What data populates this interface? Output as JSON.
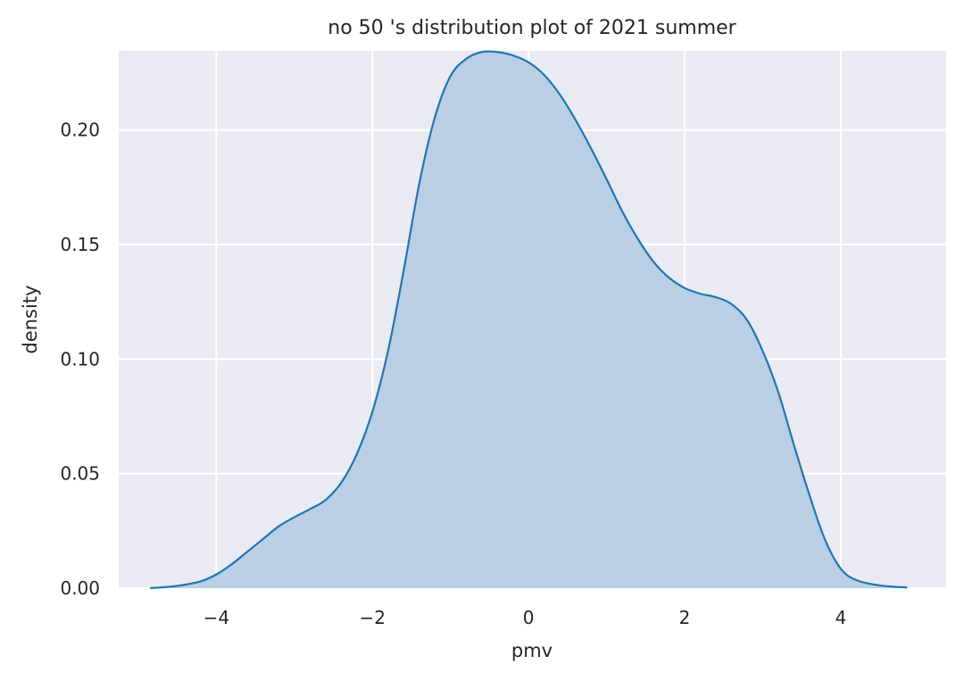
{
  "chart_data": {
    "type": "area",
    "title": "no 50 's distribution plot of 2021 summer",
    "xlabel": "pmv",
    "ylabel": "density",
    "xlim": [
      -5.25,
      5.35
    ],
    "ylim": [
      0,
      0.2345
    ],
    "xticks": [
      -4,
      -2,
      0,
      2,
      4
    ],
    "xtick_labels": [
      "−4",
      "−2",
      "0",
      "2",
      "4"
    ],
    "yticks": [
      0.0,
      0.05,
      0.1,
      0.15,
      0.2
    ],
    "ytick_labels": [
      "0.00",
      "0.05",
      "0.10",
      "0.15",
      "0.20"
    ],
    "grid": true,
    "series": [
      {
        "x": [
          -4.85,
          -4.5,
          -4.2,
          -4.0,
          -3.8,
          -3.6,
          -3.4,
          -3.2,
          -3.0,
          -2.8,
          -2.6,
          -2.4,
          -2.2,
          -2.0,
          -1.8,
          -1.6,
          -1.4,
          -1.2,
          -1.0,
          -0.8,
          -0.6,
          -0.4,
          -0.2,
          0.0,
          0.2,
          0.4,
          0.6,
          0.8,
          1.0,
          1.2,
          1.4,
          1.6,
          1.8,
          2.0,
          2.2,
          2.4,
          2.6,
          2.8,
          3.0,
          3.2,
          3.4,
          3.6,
          3.8,
          4.0,
          4.2,
          4.5,
          4.85
        ],
        "y": [
          0.0,
          0.001,
          0.003,
          0.006,
          0.0105,
          0.016,
          0.0215,
          0.027,
          0.031,
          0.0345,
          0.0385,
          0.046,
          0.0585,
          0.077,
          0.1035,
          0.1385,
          0.1765,
          0.2055,
          0.2235,
          0.231,
          0.234,
          0.234,
          0.2325,
          0.2295,
          0.224,
          0.2155,
          0.2045,
          0.192,
          0.1785,
          0.1645,
          0.1525,
          0.1425,
          0.1355,
          0.131,
          0.1285,
          0.127,
          0.124,
          0.117,
          0.1035,
          0.0855,
          0.0625,
          0.0405,
          0.021,
          0.0085,
          0.0035,
          0.0012,
          0.0003
        ],
        "color": "#1f77b4",
        "fill_color": "#b7cde2"
      }
    ]
  }
}
